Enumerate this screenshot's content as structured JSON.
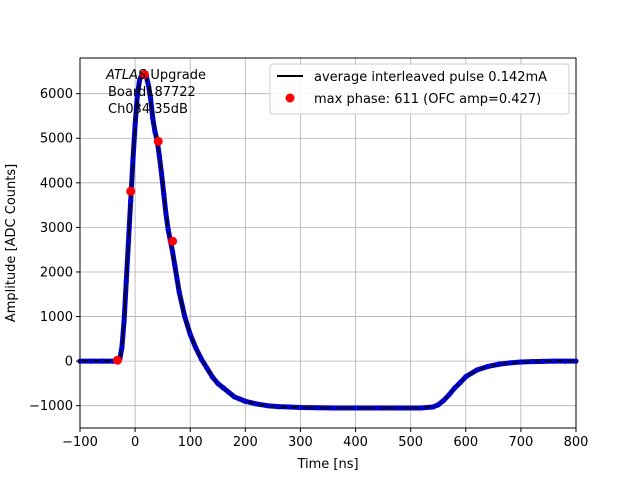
{
  "chart_data": {
    "type": "line",
    "title": "",
    "xlabel": "Time [ns]",
    "ylabel": "Amplitude [ADC Counts]",
    "xlim": [
      -100,
      800
    ],
    "ylim": [
      -1500,
      6800
    ],
    "xticks": [
      -100,
      0,
      100,
      200,
      300,
      400,
      500,
      600,
      700,
      800
    ],
    "yticks": [
      -1000,
      0,
      1000,
      2000,
      3000,
      4000,
      5000,
      6000
    ],
    "xtick_labels": [
      "−100",
      "0",
      "100",
      "200",
      "300",
      "400",
      "500",
      "600",
      "700",
      "800"
    ],
    "ytick_labels": [
      "−1000",
      "0",
      "1000",
      "2000",
      "3000",
      "4000",
      "5000",
      "6000"
    ],
    "grid": true,
    "legend_position": "top-right",
    "annotation": {
      "line1_italic": "ATLAS",
      "line1_rest": " Upgrade",
      "line2": "Board187722",
      "line3": "Ch034 35dB"
    },
    "series": [
      {
        "name": "average interleaved pulse 0.142mA",
        "style": "line-with-points",
        "line_color": "#000000",
        "point_color": "#0000cc",
        "x": [
          -100,
          -80,
          -60,
          -40,
          -32,
          -28,
          -24,
          -20,
          -16,
          -12,
          -8,
          -4,
          0,
          4,
          8,
          12,
          16,
          20,
          24,
          28,
          32,
          36,
          40,
          44,
          48,
          52,
          56,
          60,
          64,
          68,
          72,
          76,
          80,
          90,
          100,
          110,
          120,
          130,
          140,
          150,
          160,
          170,
          180,
          190,
          200,
          220,
          240,
          260,
          280,
          300,
          330,
          360,
          400,
          440,
          480,
          520,
          540,
          550,
          560,
          570,
          580,
          590,
          600,
          620,
          640,
          660,
          680,
          700,
          720,
          740,
          760,
          780,
          800
        ],
        "y": [
          0,
          0,
          0,
          0,
          10,
          40,
          300,
          900,
          1800,
          2700,
          3600,
          4500,
          5300,
          5950,
          6300,
          6420,
          6450,
          6400,
          6200,
          5900,
          5450,
          5150,
          4950,
          4600,
          4200,
          3750,
          3300,
          2950,
          2700,
          2450,
          2150,
          1850,
          1550,
          1000,
          600,
          300,
          50,
          -150,
          -350,
          -500,
          -600,
          -700,
          -800,
          -850,
          -900,
          -960,
          -1000,
          -1020,
          -1030,
          -1040,
          -1045,
          -1050,
          -1050,
          -1050,
          -1050,
          -1050,
          -1030,
          -980,
          -880,
          -750,
          -600,
          -480,
          -350,
          -200,
          -120,
          -70,
          -40,
          -20,
          -10,
          -5,
          0,
          0,
          0
        ]
      },
      {
        "name": "max phase: 611 (OFC amp=0.427)",
        "style": "markers",
        "point_color": "#ff0000",
        "x": [
          -32,
          -8,
          17,
          42,
          68
        ],
        "y": [
          20,
          3810,
          6430,
          4930,
          2690
        ]
      }
    ]
  }
}
